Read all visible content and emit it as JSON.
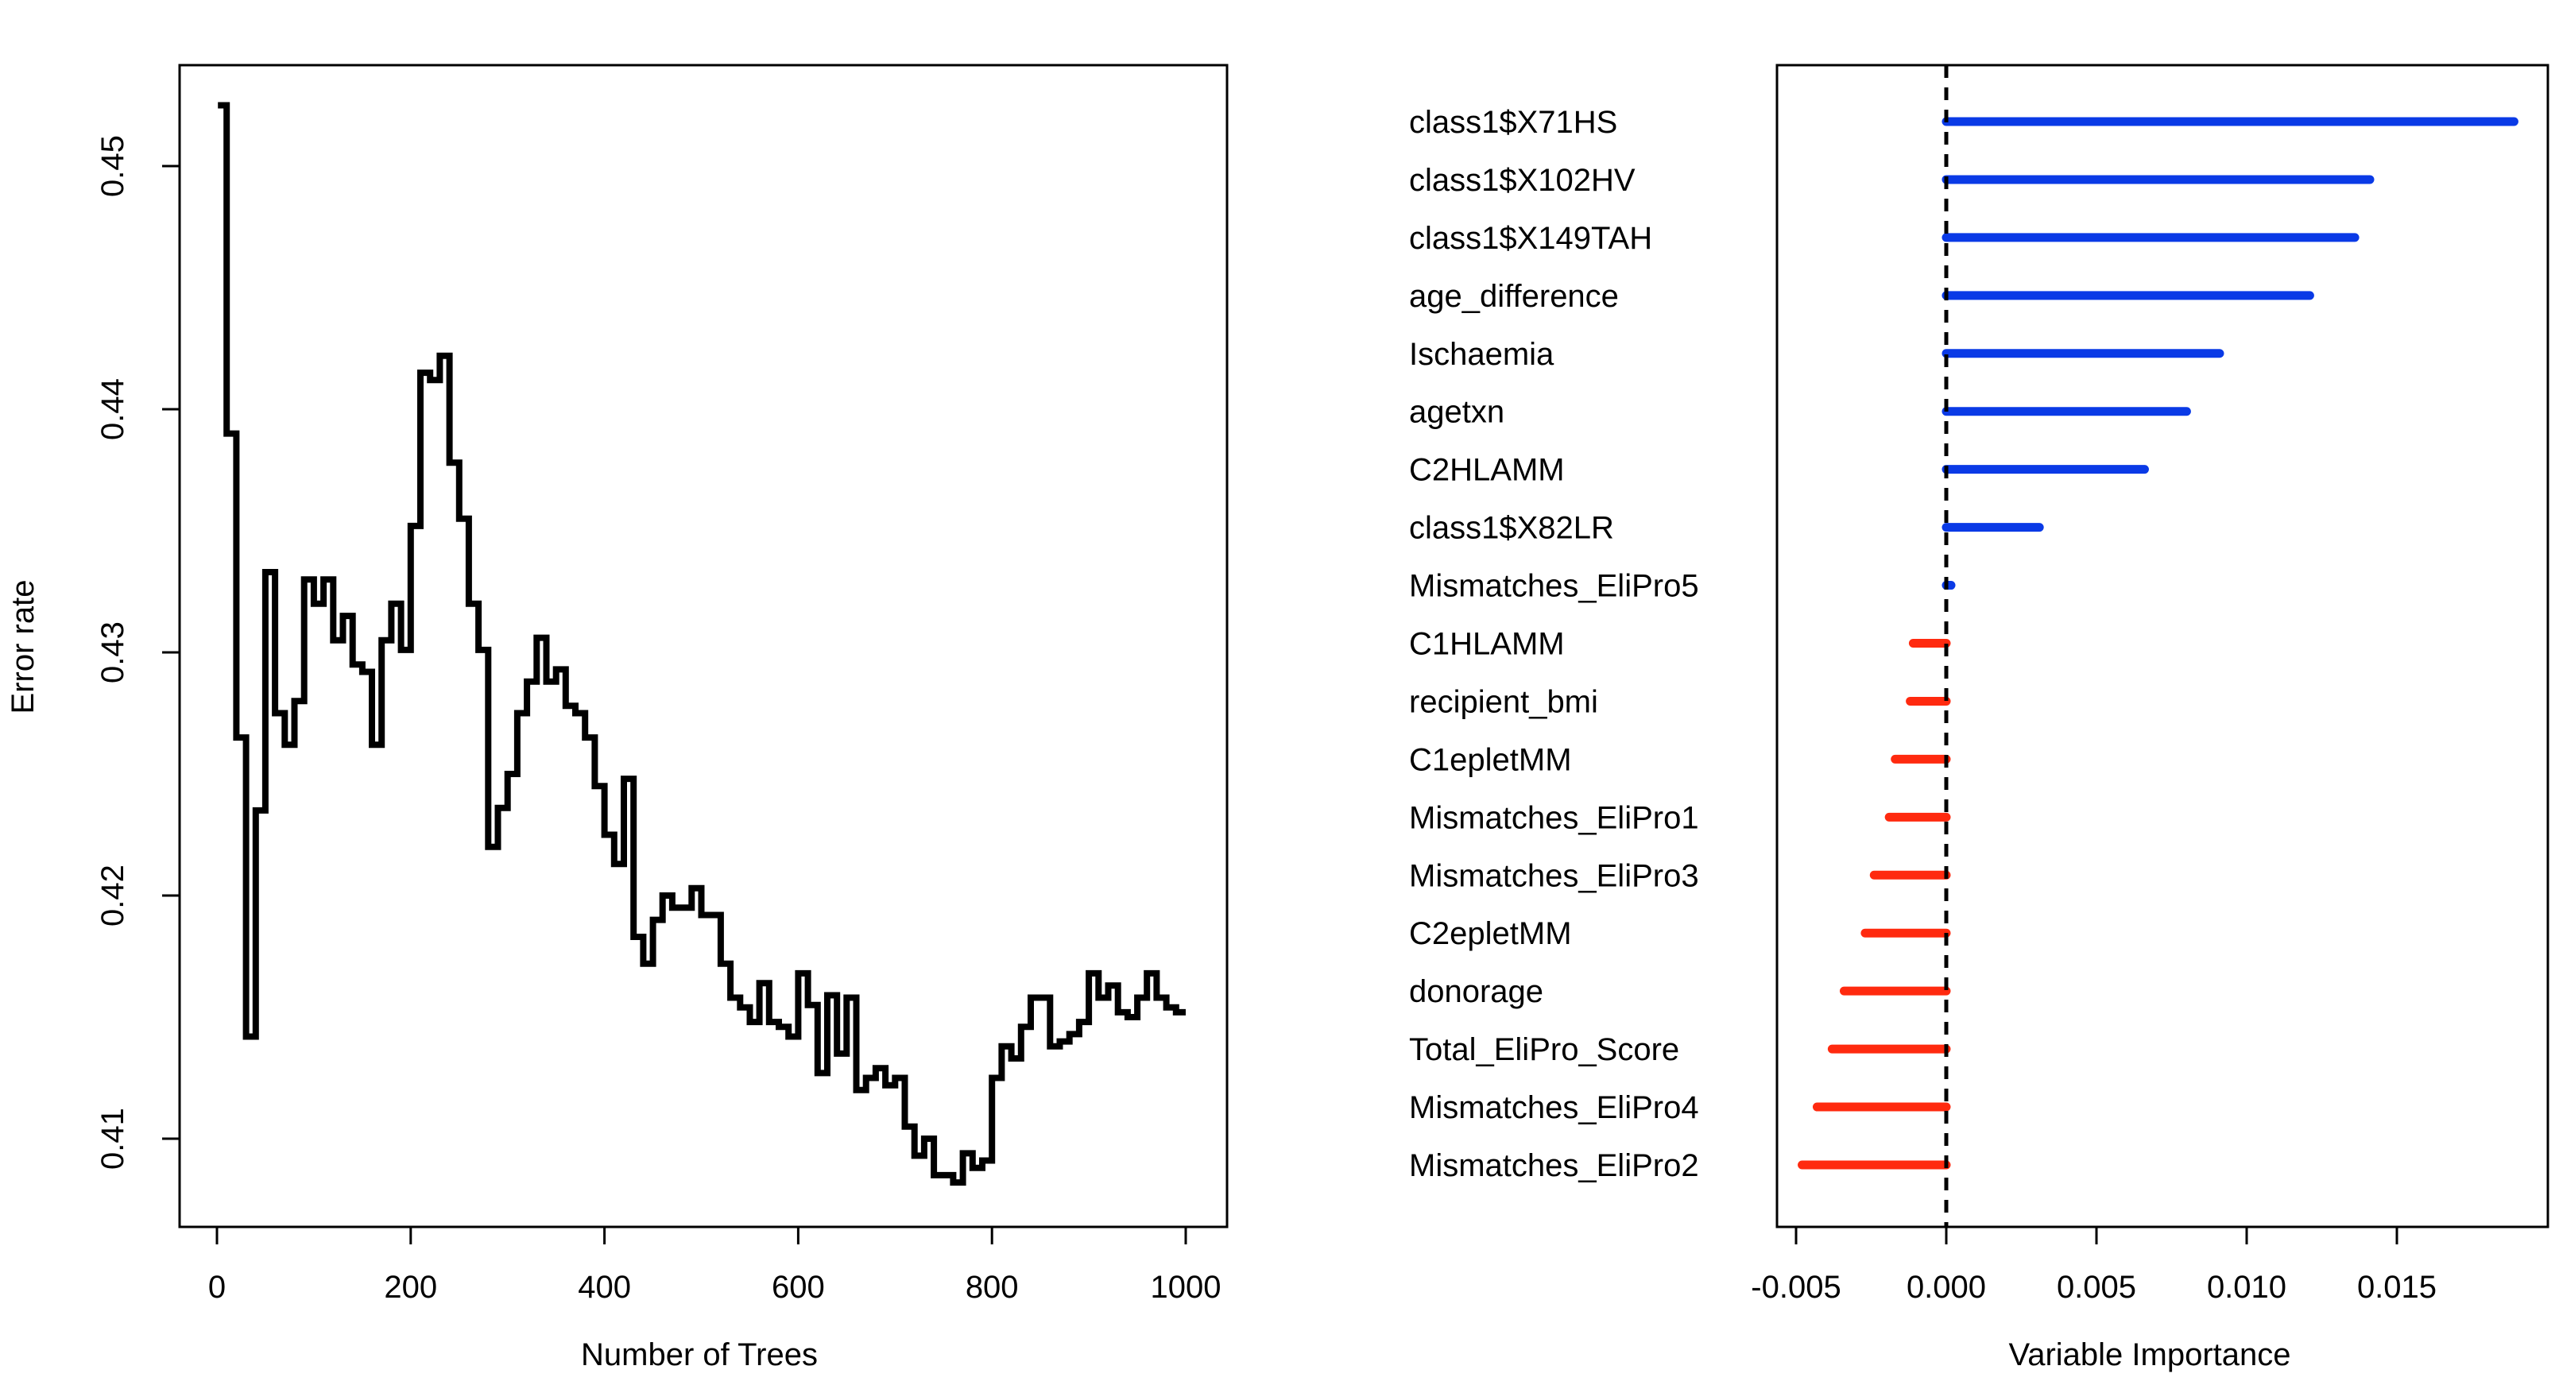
{
  "chart_data": [
    {
      "type": "line",
      "xlabel": "Number of Trees",
      "ylabel": "Error rate",
      "xlim": [
        0,
        1000
      ],
      "ylim": [
        0.4075,
        0.4535
      ],
      "xticks": [
        0,
        200,
        400,
        600,
        800,
        1000
      ],
      "yticks": [
        0.41,
        0.42,
        0.43,
        0.44,
        0.45
      ],
      "xtick_labels": [
        "0",
        "200",
        "400",
        "600",
        "800",
        "1000"
      ],
      "ytick_labels": [
        "0.41",
        "0.42",
        "0.43",
        "0.44",
        "0.45"
      ],
      "grid": false,
      "step": true,
      "color": "#000000",
      "x": [
        1,
        10,
        20,
        30,
        40,
        50,
        60,
        70,
        80,
        90,
        100,
        110,
        120,
        130,
        140,
        150,
        160,
        170,
        180,
        190,
        200,
        210,
        220,
        230,
        240,
        250,
        260,
        270,
        280,
        290,
        300,
        310,
        320,
        330,
        340,
        350,
        360,
        370,
        380,
        390,
        400,
        410,
        420,
        430,
        440,
        450,
        460,
        470,
        480,
        490,
        500,
        510,
        520,
        530,
        540,
        550,
        560,
        570,
        580,
        590,
        600,
        610,
        620,
        630,
        640,
        650,
        660,
        670,
        680,
        690,
        700,
        710,
        720,
        730,
        740,
        750,
        760,
        770,
        780,
        790,
        800,
        810,
        820,
        830,
        840,
        850,
        860,
        870,
        880,
        890,
        900,
        910,
        920,
        930,
        940,
        950,
        960,
        970,
        980,
        990,
        1000
      ],
      "y": [
        0.4525,
        0.439,
        0.4265,
        0.4142,
        0.4235,
        0.4333,
        0.4275,
        0.4262,
        0.428,
        0.433,
        0.432,
        0.433,
        0.4305,
        0.4315,
        0.4295,
        0.4292,
        0.4262,
        0.4305,
        0.432,
        0.4301,
        0.4352,
        0.4415,
        0.4412,
        0.4422,
        0.4378,
        0.4355,
        0.432,
        0.4301,
        0.422,
        0.4236,
        0.425,
        0.4275,
        0.4288,
        0.4306,
        0.4288,
        0.4293,
        0.4278,
        0.4275,
        0.4265,
        0.4245,
        0.4225,
        0.4213,
        0.4248,
        0.4183,
        0.4172,
        0.419,
        0.42,
        0.4195,
        0.4195,
        0.4203,
        0.4192,
        0.4192,
        0.4172,
        0.4158,
        0.4154,
        0.4148,
        0.4164,
        0.4148,
        0.4146,
        0.4142,
        0.4168,
        0.4155,
        0.4127,
        0.4159,
        0.4135,
        0.4158,
        0.412,
        0.4125,
        0.4129,
        0.4122,
        0.4125,
        0.4105,
        0.4093,
        0.41,
        0.4085,
        0.4085,
        0.4082,
        0.4094,
        0.4088,
        0.4091,
        0.4125,
        0.4138,
        0.4133,
        0.4146,
        0.4158,
        0.4158,
        0.4138,
        0.414,
        0.4143,
        0.4148,
        0.4168,
        0.4158,
        0.4163,
        0.4152,
        0.415,
        0.4158,
        0.4168,
        0.4158,
        0.4154,
        0.4152,
        0.4152
      ]
    },
    {
      "type": "bar",
      "orientation": "horizontal",
      "style": "lollipop-lines",
      "xlabel": "Variable Importance",
      "xlim": [
        -0.0057,
        0.0197
      ],
      "xticks": [
        -0.005,
        0.0,
        0.005,
        0.01,
        0.015
      ],
      "xtick_labels": [
        "-0.005",
        "0.000",
        "0.005",
        "0.010",
        "0.015"
      ],
      "reference_line": 0.0,
      "grid": false,
      "positive_color": "#0a3ae6",
      "negative_color": "#ff2a0f",
      "categories": [
        "class1$X71HS",
        "class1$X102HV",
        "class1$X149TAH",
        "age_difference",
        "Ischaemia",
        "agetxn",
        "C2HLAMM",
        "class1$X82LR",
        "Mismatches_EliPro5",
        "C1HLAMM",
        "recipient_bmi",
        "C1epletMM",
        "Mismatches_EliPro1",
        "Mismatches_EliPro3",
        "C2epletMM",
        "donorage",
        "Total_EliPro_Score",
        "Mismatches_EliPro4",
        "Mismatches_EliPro2"
      ],
      "values": [
        0.0189,
        0.0141,
        0.0136,
        0.0121,
        0.0091,
        0.008,
        0.0066,
        0.0031,
        0.0001,
        -0.0011,
        -0.0012,
        -0.0017,
        -0.0019,
        -0.0024,
        -0.0027,
        -0.0034,
        -0.0038,
        -0.0043,
        -0.0048
      ]
    }
  ]
}
